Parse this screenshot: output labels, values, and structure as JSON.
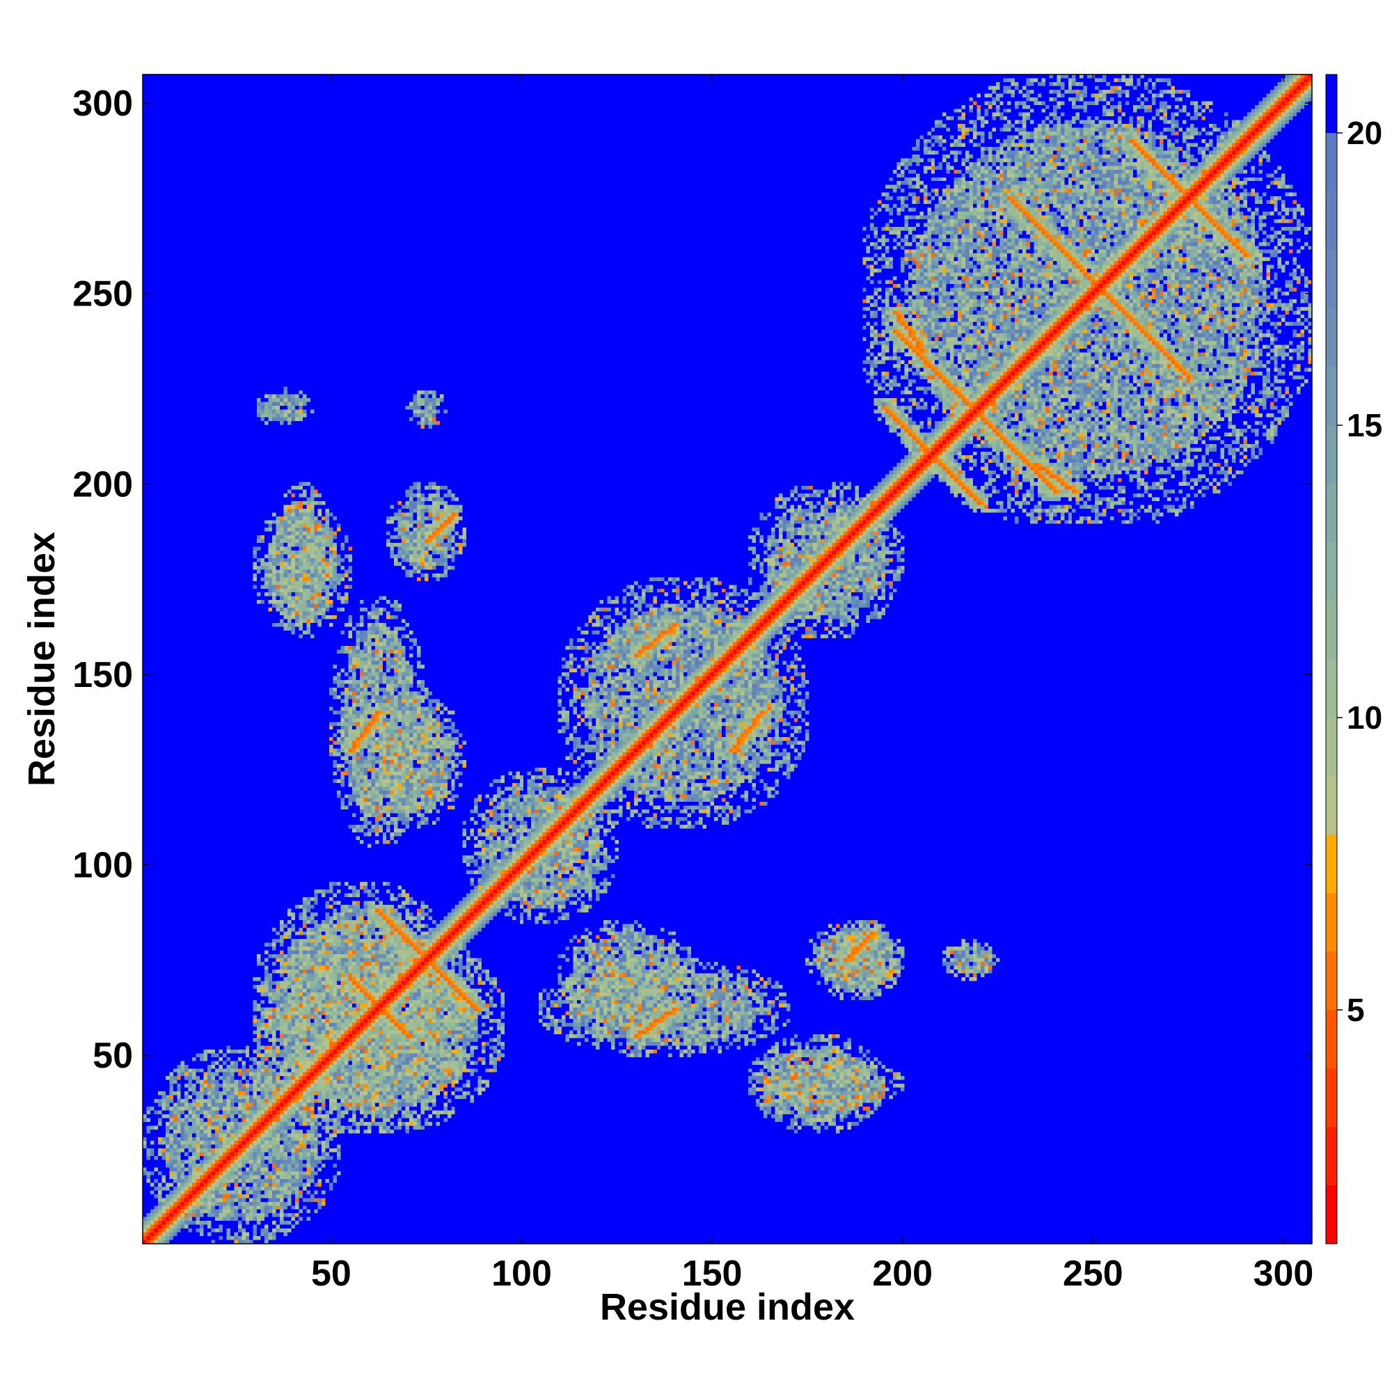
{
  "chart_data": {
    "type": "heatmap",
    "subtype": "residue contact / distance map",
    "title": "",
    "xlabel": "Residue index",
    "ylabel": "Residue index",
    "x_range": [
      1,
      307
    ],
    "y_range": [
      1,
      307
    ],
    "x_ticks": [
      50,
      100,
      150,
      200,
      250,
      300
    ],
    "y_ticks": [
      50,
      100,
      150,
      200,
      250,
      300
    ],
    "grid": false,
    "colorbar": {
      "position": "right",
      "range": [
        1,
        21
      ],
      "ticks": [
        5,
        10,
        15,
        20
      ],
      "levels": [
        {
          "max": 2,
          "color": "#ff0000"
        },
        {
          "max": 3,
          "color": "#ff2000"
        },
        {
          "max": 4,
          "color": "#ff3c00"
        },
        {
          "max": 5,
          "color": "#ff5500"
        },
        {
          "max": 6,
          "color": "#ff7000"
        },
        {
          "max": 7,
          "color": "#ff8c00"
        },
        {
          "max": 8,
          "color": "#ffaa00"
        },
        {
          "max": 9,
          "color": "#b5c48a"
        },
        {
          "max": 10,
          "color": "#a8c08f"
        },
        {
          "max": 11,
          "color": "#9cbc96"
        },
        {
          "max": 12,
          "color": "#92b89b"
        },
        {
          "max": 13,
          "color": "#89b2a0"
        },
        {
          "max": 14,
          "color": "#80aaa6"
        },
        {
          "max": 15,
          "color": "#78a2ac"
        },
        {
          "max": 16,
          "color": "#7099b2"
        },
        {
          "max": 17,
          "color": "#6a90b6"
        },
        {
          "max": 18,
          "color": "#6488ba"
        },
        {
          "max": 19,
          "color": "#5f82bd"
        },
        {
          "max": 20,
          "color": "#5a7cc0"
        },
        {
          "max": 21,
          "color": "#0000ff"
        }
      ]
    },
    "background_value": 21,
    "diagonal_value": 1,
    "near_diagonal_band": [
      {
        "offset": 1,
        "value": 4
      },
      {
        "offset": 2,
        "value": 6
      },
      {
        "offset": 3,
        "value": 9
      },
      {
        "offset": 4,
        "value": 12
      },
      {
        "offset": 5,
        "value": 15
      },
      {
        "offset": 6,
        "value": 18
      }
    ],
    "contact_regions": [
      {
        "x": [
          1,
          52
        ],
        "y": [
          1,
          52
        ]
      },
      {
        "x": [
          30,
          85
        ],
        "y": [
          30,
          95
        ]
      },
      {
        "x": [
          30,
          95
        ],
        "y": [
          30,
          85
        ]
      },
      {
        "x": [
          85,
          125
        ],
        "y": [
          85,
          125
        ]
      },
      {
        "x": [
          110,
          175
        ],
        "y": [
          110,
          175
        ]
      },
      {
        "x": [
          160,
          200
        ],
        "y": [
          160,
          200
        ]
      },
      {
        "x": [
          190,
          307
        ],
        "y": [
          190,
          307
        ]
      },
      {
        "x": [
          30,
          55
        ],
        "y": [
          160,
          195
        ]
      },
      {
        "x": [
          160,
          195
        ],
        "y": [
          30,
          55
        ]
      },
      {
        "x": [
          60,
          85
        ],
        "y": [
          110,
          145
        ]
      },
      {
        "x": [
          110,
          145
        ],
        "y": [
          60,
          85
        ]
      },
      {
        "x": [
          65,
          85
        ],
        "y": [
          175,
          200
        ]
      },
      {
        "x": [
          175,
          200
        ],
        "y": [
          65,
          85
        ]
      },
      {
        "x": [
          105,
          170
        ],
        "y": [
          50,
          75
        ]
      },
      {
        "x": [
          50,
          75
        ],
        "y": [
          105,
          170
        ]
      },
      {
        "x": [
          160,
          200
        ],
        "y": [
          35,
          50
        ]
      },
      {
        "x": [
          35,
          50
        ],
        "y": [
          160,
          200
        ]
      },
      {
        "x": [
          180,
          200
        ],
        "y": [
          65,
          85
        ]
      },
      {
        "x": [
          210,
          225
        ],
        "y": [
          70,
          80
        ]
      },
      {
        "x": [
          30,
          45
        ],
        "y": [
          215,
          225
        ]
      },
      {
        "x": [
          70,
          80
        ],
        "y": [
          215,
          225
        ]
      }
    ],
    "strands": [
      {
        "x0": 55,
        "y0": 70,
        "x1": 70,
        "y1": 55,
        "value": 6
      },
      {
        "x0": 62,
        "y0": 88,
        "x1": 88,
        "y1": 62,
        "value": 6
      },
      {
        "x0": 130,
        "y0": 55,
        "x1": 140,
        "y1": 62,
        "value": 6
      },
      {
        "x0": 55,
        "y0": 130,
        "x1": 62,
        "y1": 140,
        "value": 6
      },
      {
        "x0": 155,
        "y0": 130,
        "x1": 163,
        "y1": 140,
        "value": 6
      },
      {
        "x0": 130,
        "y0": 155,
        "x1": 140,
        "y1": 163,
        "value": 6
      },
      {
        "x0": 185,
        "y0": 75,
        "x1": 192,
        "y1": 82,
        "value": 6
      },
      {
        "x0": 75,
        "y0": 185,
        "x1": 82,
        "y1": 192,
        "value": 6
      },
      {
        "x0": 195,
        "y0": 220,
        "x1": 220,
        "y1": 195,
        "value": 6
      },
      {
        "x0": 228,
        "y0": 275,
        "x1": 275,
        "y1": 228,
        "value": 6
      },
      {
        "x0": 260,
        "y0": 290,
        "x1": 290,
        "y1": 260,
        "value": 6
      },
      {
        "x0": 198,
        "y0": 240,
        "x1": 240,
        "y1": 198,
        "value": 6
      },
      {
        "x0": 235,
        "y0": 205,
        "x1": 245,
        "y1": 198,
        "value": 6
      },
      {
        "x0": 198,
        "y0": 245,
        "x1": 205,
        "y1": 235,
        "value": 6
      }
    ]
  }
}
